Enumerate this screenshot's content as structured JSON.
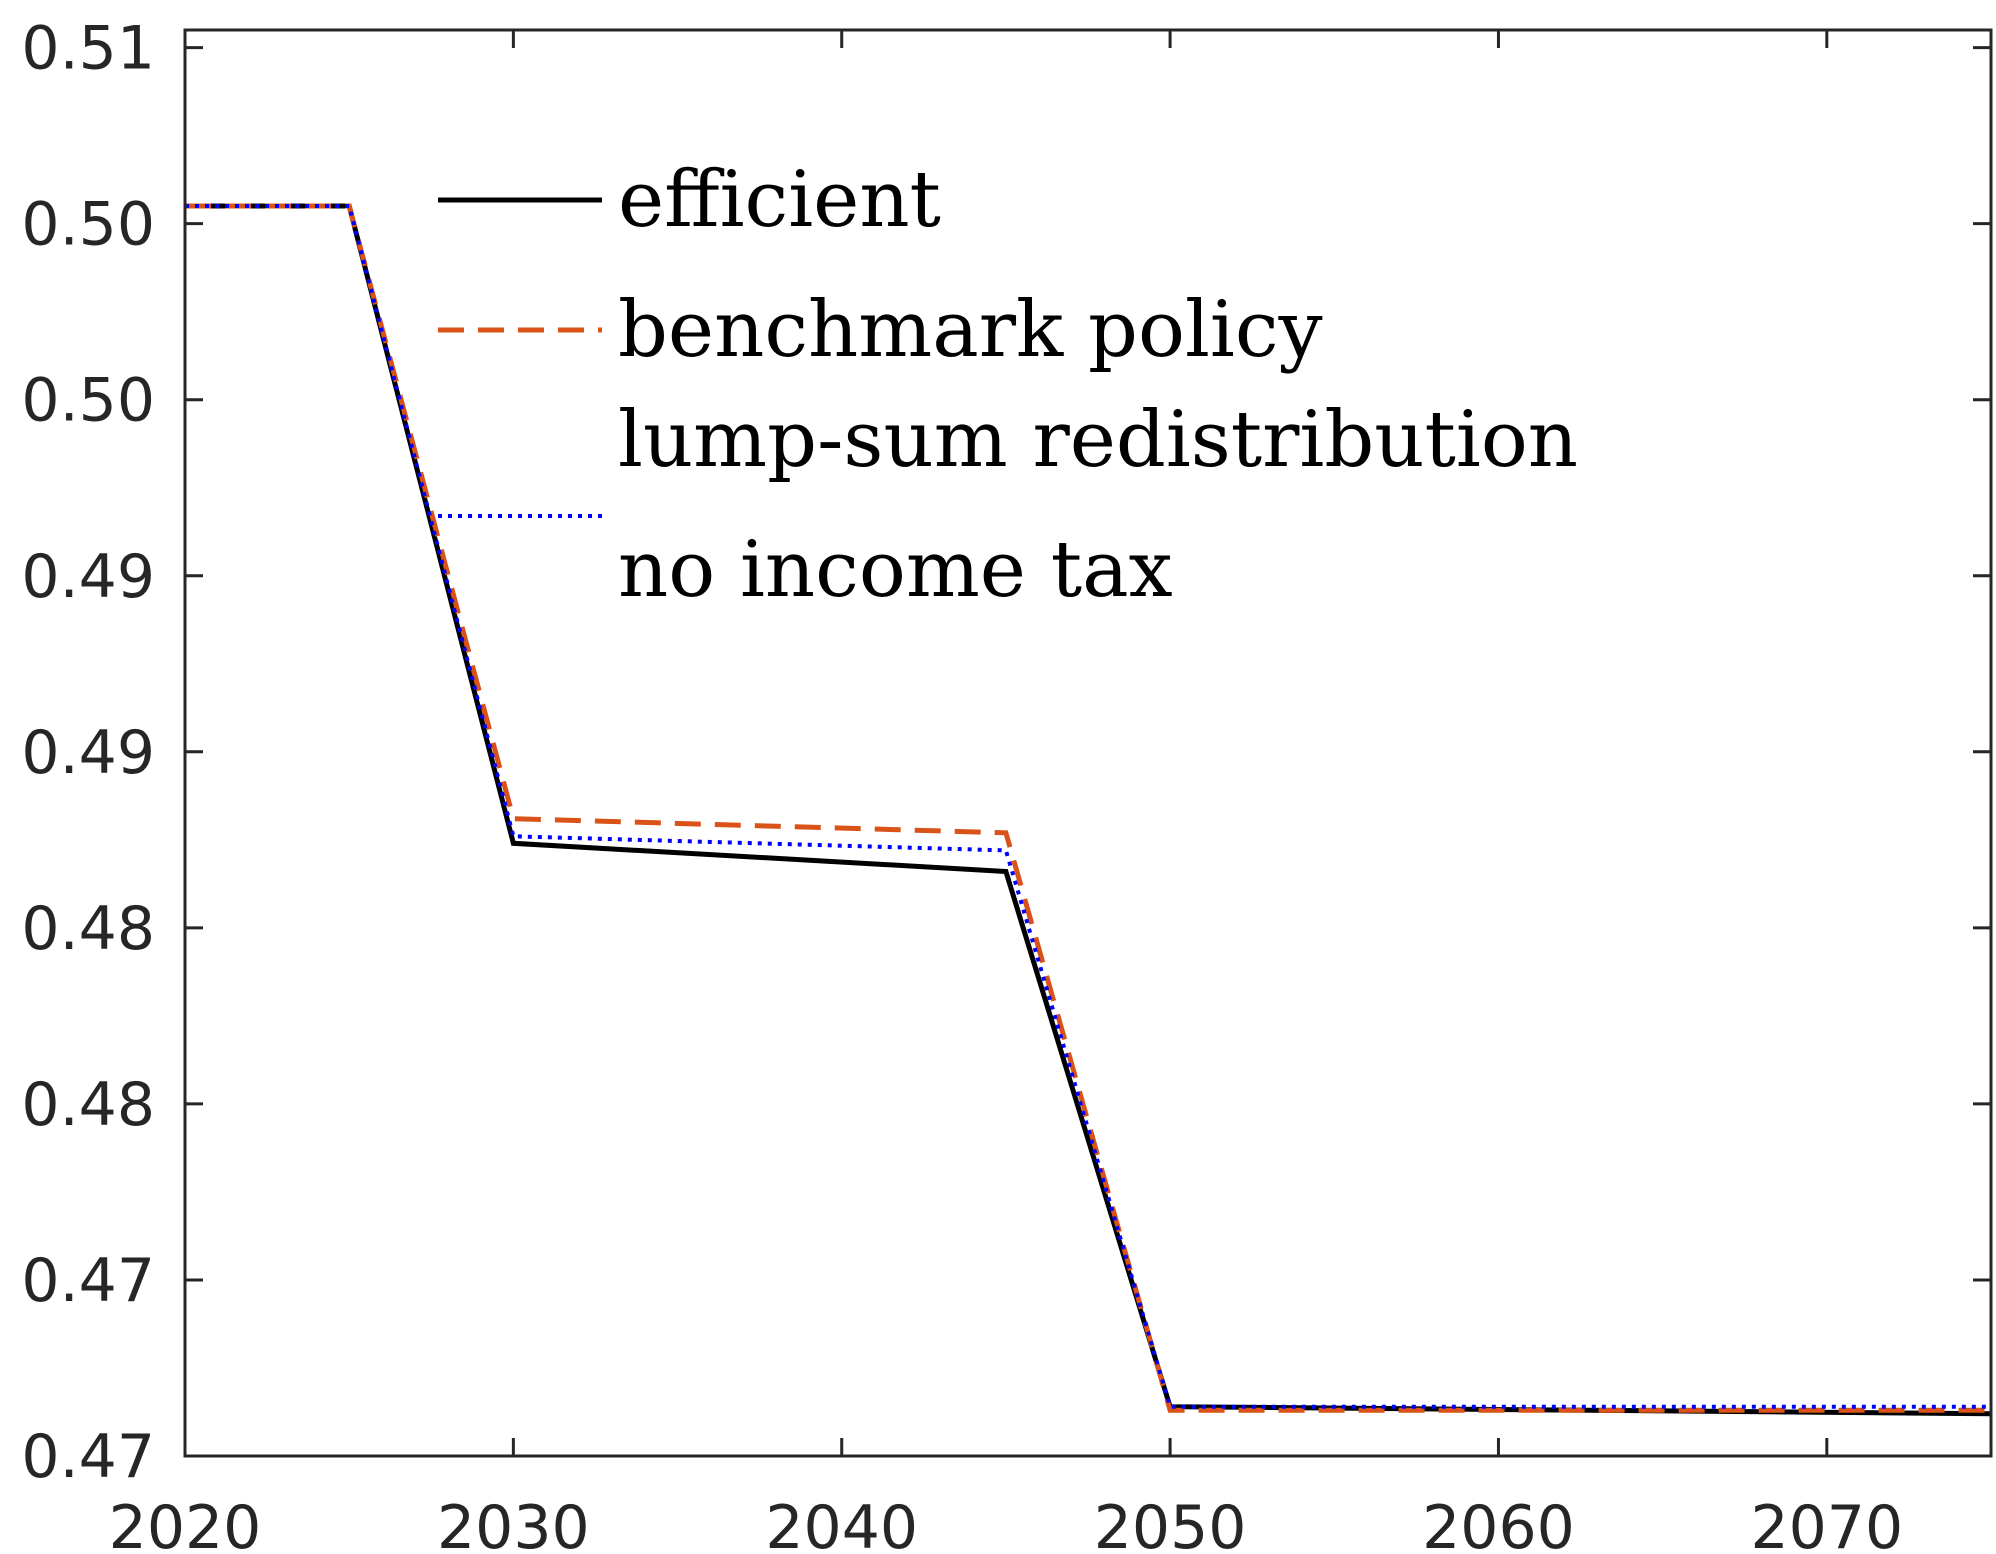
{
  "chart_data": {
    "type": "line",
    "title": "",
    "xlabel": "",
    "ylabel": "",
    "xlim": [
      2020,
      2075
    ],
    "ylim": [
      0.47,
      0.5105
    ],
    "grid": false,
    "legend_position": "top-center",
    "x_ticks": [
      2020,
      2030,
      2040,
      2050,
      2060,
      2070
    ],
    "x_tick_labels": [
      "2020",
      "2030",
      "2040",
      "2050",
      "2060",
      "2070"
    ],
    "y_ticks": [
      0.47,
      0.475,
      0.48,
      0.485,
      0.49,
      0.495,
      0.5,
      0.505,
      0.51
    ],
    "y_tick_labels": [
      "0.47",
      "0.47",
      "0.48",
      "0.48",
      "0.49",
      "0.49",
      "0.50",
      "0.50",
      "0.51"
    ],
    "legend": [
      "efficient",
      "benchmark policy",
      "lump-sum redistribution",
      "no income tax"
    ],
    "series": [
      {
        "name": "efficient",
        "color": "#000000",
        "style": "solid",
        "x": [
          2020,
          2025,
          2030,
          2045,
          2050,
          2075
        ],
        "y": [
          0.5055,
          0.5055,
          0.4874,
          0.4866,
          0.4714,
          0.4712
        ]
      },
      {
        "name": "benchmark policy",
        "color": "#D95319",
        "style": "dashed",
        "x": [
          2020,
          2025,
          2030,
          2045,
          2050,
          2075
        ],
        "y": [
          0.5055,
          0.5055,
          0.4881,
          0.4877,
          0.4713,
          0.4713
        ]
      },
      {
        "name": "lump-sum redistribution",
        "color": "#EDB120",
        "style": "none",
        "x": [
          2020,
          2025,
          2030,
          2045,
          2050,
          2075
        ],
        "y": [
          0.5055,
          0.5055,
          0.4876,
          0.4872,
          0.4714,
          0.4713
        ]
      },
      {
        "name": "no income tax",
        "color": "#0000FF",
        "style": "dotted",
        "x": [
          2020,
          2025,
          2030,
          2045,
          2050,
          2075
        ],
        "y": [
          0.5055,
          0.5055,
          0.4876,
          0.4872,
          0.4714,
          0.4714
        ]
      }
    ]
  }
}
